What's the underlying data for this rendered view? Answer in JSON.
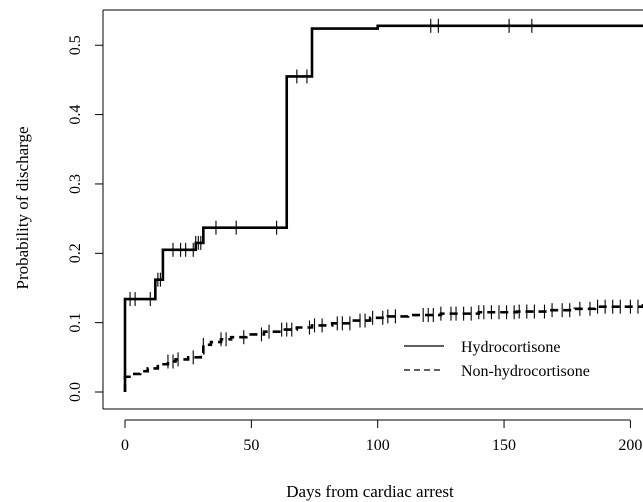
{
  "chart_data": {
    "type": "line",
    "title": "",
    "xlabel": "Days from cardiac arrest",
    "ylabel": "Probability of discharge",
    "xlim": [
      0,
      205
    ],
    "ylim": [
      0,
      0.53
    ],
    "xticks": [
      0,
      50,
      100,
      150,
      200
    ],
    "xtick_labels": [
      "0",
      "50",
      "100",
      "150",
      "200"
    ],
    "yticks": [
      0.0,
      0.1,
      0.2,
      0.3,
      0.4,
      0.5
    ],
    "ytick_labels": [
      "0.0",
      "0.1",
      "0.2",
      "0.3",
      "0.4",
      "0.5"
    ],
    "grid": false,
    "legend_position": "bottom-right",
    "series": [
      {
        "name": "Hydrocortisone",
        "style": "solid",
        "color": "#000000",
        "steps": [
          [
            0,
            0.0
          ],
          [
            0,
            0.134
          ],
          [
            12,
            0.134
          ],
          [
            12,
            0.162
          ],
          [
            15,
            0.162
          ],
          [
            15,
            0.205
          ],
          [
            28,
            0.205
          ],
          [
            28,
            0.215
          ],
          [
            31,
            0.215
          ],
          [
            31,
            0.237
          ],
          [
            64,
            0.237
          ],
          [
            64,
            0.455
          ],
          [
            74,
            0.455
          ],
          [
            74,
            0.524
          ],
          [
            100,
            0.524
          ],
          [
            100,
            0.528
          ],
          [
            205,
            0.528
          ]
        ],
        "censored": [
          2,
          4,
          10,
          13,
          14,
          19,
          22,
          24,
          27,
          28,
          29,
          30,
          36,
          44,
          60,
          68,
          72,
          121,
          124,
          152,
          161
        ]
      },
      {
        "name": "Non-hydrocortisone",
        "style": "dashed",
        "color": "#000000",
        "steps": [
          [
            0,
            0.0
          ],
          [
            0,
            0.022
          ],
          [
            3,
            0.026
          ],
          [
            6,
            0.03
          ],
          [
            9,
            0.034
          ],
          [
            13,
            0.04
          ],
          [
            17,
            0.044
          ],
          [
            20,
            0.047
          ],
          [
            25,
            0.05
          ],
          [
            30,
            0.056
          ],
          [
            31,
            0.068
          ],
          [
            34,
            0.072
          ],
          [
            38,
            0.076
          ],
          [
            42,
            0.079
          ],
          [
            48,
            0.083
          ],
          [
            55,
            0.087
          ],
          [
            62,
            0.09
          ],
          [
            68,
            0.093
          ],
          [
            74,
            0.096
          ],
          [
            82,
            0.099
          ],
          [
            90,
            0.103
          ],
          [
            97,
            0.107
          ],
          [
            104,
            0.109
          ],
          [
            112,
            0.111
          ],
          [
            125,
            0.113
          ],
          [
            140,
            0.115
          ],
          [
            155,
            0.116
          ],
          [
            168,
            0.118
          ],
          [
            178,
            0.12
          ],
          [
            186,
            0.123
          ],
          [
            205,
            0.127
          ]
        ],
        "censored": [
          17,
          19,
          21,
          27,
          31,
          38,
          40,
          47,
          54,
          57,
          62,
          64,
          66,
          73,
          75,
          78,
          84,
          86,
          89,
          93,
          95,
          98,
          102,
          104,
          107,
          118,
          120,
          122,
          125,
          129,
          131,
          134,
          137,
          140,
          142,
          145,
          148,
          151,
          154,
          156,
          159,
          162,
          166,
          169,
          173,
          176,
          180,
          184,
          187,
          190,
          193,
          196,
          200,
          203
        ]
      }
    ]
  }
}
